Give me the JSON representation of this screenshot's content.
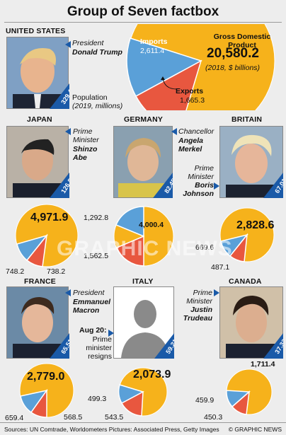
{
  "title": "Group of Seven factbox",
  "watermark": "GRAPHIC NEWS",
  "colors": {
    "gdp": "#f6b21b",
    "imports": "#5aa0d8",
    "exports": "#e8573f",
    "badge": "#1a5aa8",
    "background": "#ededed"
  },
  "usa": {
    "country": "UNITED STATES",
    "role": "President",
    "name": "Donald Trump",
    "population": "329.41",
    "population_label": "Population",
    "population_note": "(2019, millions)",
    "gdp_label": "Gross Domestic Product",
    "gdp": "20,580.2",
    "gdp_note": "(2018, $ billions)",
    "imports_label": "Imports",
    "imports": "2,611.4",
    "exports_label": "Exports",
    "exports": "1,665.3"
  },
  "japan": {
    "country": "JAPAN",
    "role": "Prime Minister",
    "name": "Shinzo Abe",
    "population": "126.81",
    "gdp": "4,971.9",
    "imports": "748.2",
    "exports": "738.2"
  },
  "germany": {
    "country": "GERMANY",
    "role": "Chancellor",
    "name": "Angela Merkel",
    "population": "82.45",
    "gdp": "4,000.4",
    "imports": "1,292.8",
    "exports": "1,562.5"
  },
  "britain": {
    "country": "BRITAIN",
    "role": "Prime Minister",
    "name": "Boris Johnson",
    "population": "67.01",
    "gdp": "2,828.6",
    "imports": "669.6",
    "exports": "487.1"
  },
  "france": {
    "country": "FRANCE",
    "role": "President",
    "name": "Emmanuel Macron",
    "population": "65.51",
    "gdp": "2,779.0",
    "imports": "659.4",
    "exports": "568.5"
  },
  "italy": {
    "country": "ITALY",
    "note_date": "Aug 20:",
    "note": "Prime minister resigns",
    "population": "59.21",
    "gdp": "2,073.9",
    "imports": "499.3",
    "exports": "543.5"
  },
  "canada": {
    "country": "CANADA",
    "role": "Prime Minister",
    "name": "Justin Trudeau",
    "population": "37.32",
    "gdp": "1,711.4",
    "imports": "459.9",
    "exports": "450.3"
  },
  "footer": {
    "sources": "Sources: UN Comtrade, Worldometers Pictures: Associated Press, Getty Images",
    "credit": "© GRAPHIC NEWS"
  }
}
